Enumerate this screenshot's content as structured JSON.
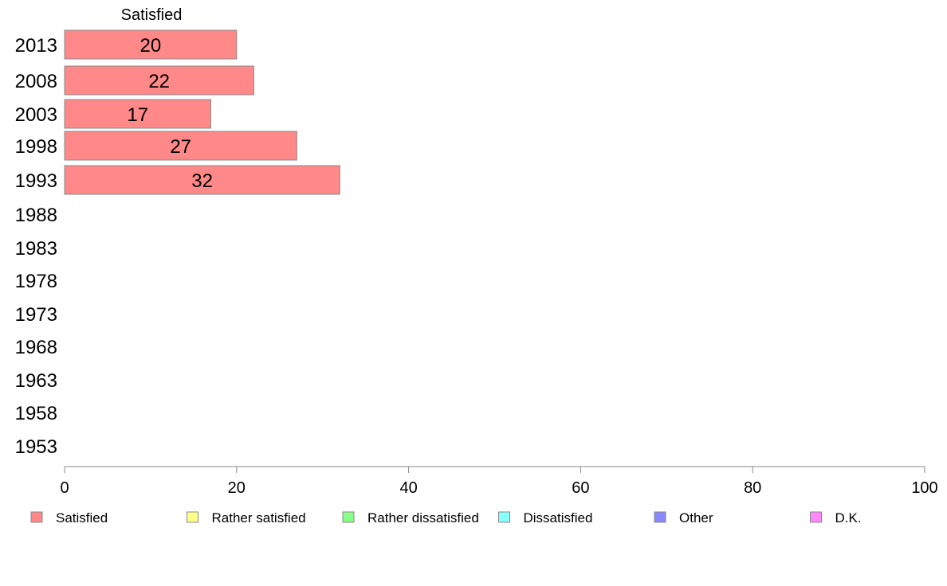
{
  "chart_data": {
    "type": "bar",
    "orientation": "horizontal",
    "stacked": true,
    "categories": [
      "2013",
      "2008",
      "2003",
      "1998",
      "1993",
      "1988",
      "1983",
      "1978",
      "1973",
      "1968",
      "1963",
      "1958",
      "1953"
    ],
    "series": [
      {
        "name": "Satisfied",
        "color": "#ff8888",
        "values": [
          20,
          22,
          17,
          27,
          32,
          null,
          null,
          null,
          null,
          null,
          null,
          null,
          null
        ]
      },
      {
        "name": "Rather satisfied",
        "color": "#ffff88",
        "values": [
          null,
          null,
          null,
          null,
          null,
          null,
          null,
          null,
          null,
          null,
          null,
          null,
          null
        ]
      },
      {
        "name": "Rather dissatisfied",
        "color": "#88ff88",
        "values": [
          null,
          null,
          null,
          null,
          null,
          null,
          null,
          null,
          null,
          null,
          null,
          null,
          null
        ]
      },
      {
        "name": "Dissatisfied",
        "color": "#88ffff",
        "values": [
          null,
          null,
          null,
          null,
          null,
          null,
          null,
          null,
          null,
          null,
          null,
          null,
          null
        ]
      },
      {
        "name": "Other",
        "color": "#8888ff",
        "values": [
          null,
          null,
          null,
          null,
          null,
          null,
          null,
          null,
          null,
          null,
          null,
          null,
          null
        ]
      },
      {
        "name": "D.K.",
        "color": "#ff88ff",
        "values": [
          null,
          null,
          null,
          null,
          null,
          null,
          null,
          null,
          null,
          null,
          null,
          null,
          null
        ]
      }
    ],
    "series_header": "Satisfied",
    "xlim": [
      0,
      100
    ],
    "xticks": [
      "0",
      "20",
      "40",
      "60",
      "80",
      "100"
    ],
    "grid": false,
    "legend_position": "bottom",
    "bar_stroke_color": "#888888",
    "axis_color": "#888888"
  }
}
